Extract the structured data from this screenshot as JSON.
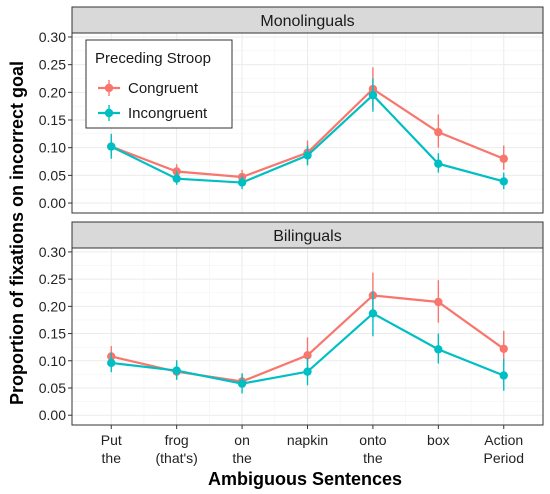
{
  "chart_data": {
    "type": "line",
    "ylabel": "Proportion of fixations on incorrect goal",
    "xlabel": "Ambiguous Sentences",
    "categories": [
      [
        "Put",
        "the"
      ],
      [
        "frog",
        "(that's)"
      ],
      [
        "on",
        "the"
      ],
      [
        "napkin"
      ],
      [
        "onto",
        "the"
      ],
      [
        "box"
      ],
      [
        "Action",
        "Period"
      ]
    ],
    "ylim": [
      0,
      0.3
    ],
    "yticks": [
      "0.00",
      "0.05",
      "0.10",
      "0.15",
      "0.20",
      "0.25",
      "0.30"
    ],
    "grid": true,
    "legend": {
      "title": "Preceding Stroop",
      "placement": "top-left",
      "entries": [
        "Congruent",
        "Incongruent"
      ]
    },
    "colors": {
      "Congruent": "#f8766d",
      "Incongruent": "#00bfc4"
    },
    "panels": [
      {
        "title": "Monolinguals",
        "series": [
          {
            "name": "Congruent",
            "values": [
              0.102,
              0.057,
              0.047,
              0.091,
              0.206,
              0.128,
              0.08
            ],
            "ci_low": [
              0.085,
              0.045,
              0.036,
              0.07,
              0.17,
              0.1,
              0.06
            ],
            "ci_high": [
              0.12,
              0.07,
              0.06,
              0.113,
              0.245,
              0.16,
              0.104
            ]
          },
          {
            "name": "Incongruent",
            "values": [
              0.102,
              0.044,
              0.037,
              0.086,
              0.195,
              0.071,
              0.039
            ],
            "ci_low": [
              0.08,
              0.033,
              0.025,
              0.068,
              0.165,
              0.055,
              0.025
            ],
            "ci_high": [
              0.125,
              0.058,
              0.05,
              0.104,
              0.225,
              0.09,
              0.055
            ]
          }
        ]
      },
      {
        "title": "Bilinguals",
        "series": [
          {
            "name": "Congruent",
            "values": [
              0.108,
              0.08,
              0.062,
              0.11,
              0.22,
              0.208,
              0.122
            ],
            "ci_low": [
              0.09,
              0.067,
              0.05,
              0.083,
              0.185,
              0.17,
              0.092
            ],
            "ci_high": [
              0.127,
              0.095,
              0.075,
              0.143,
              0.262,
              0.248,
              0.155
            ]
          },
          {
            "name": "Incongruent",
            "values": [
              0.096,
              0.082,
              0.058,
              0.08,
              0.187,
              0.121,
              0.073
            ],
            "ci_low": [
              0.079,
              0.065,
              0.04,
              0.055,
              0.145,
              0.095,
              0.045
            ],
            "ci_high": [
              0.115,
              0.101,
              0.077,
              0.105,
              0.228,
              0.15,
              0.103
            ]
          }
        ]
      }
    ]
  }
}
